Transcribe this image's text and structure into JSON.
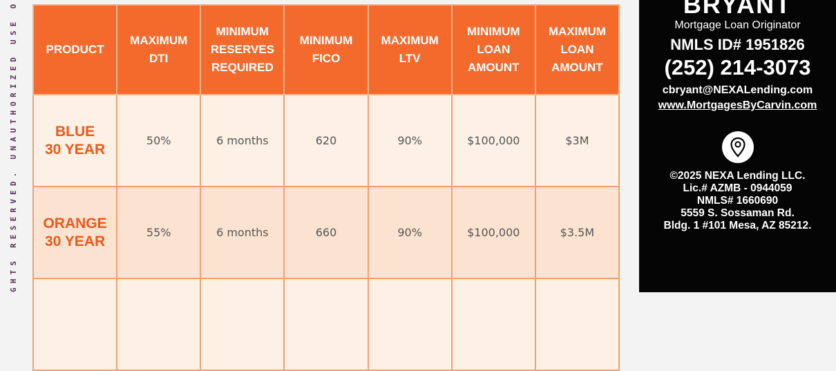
{
  "side_text": "GHTS RESERVED. UNAUTHORIZED USE OR R",
  "table": {
    "headers": [
      "PRODUCT",
      "MAXIMUM\nDTI",
      "MINIMUM\nRESERVES\nREQUIRED",
      "MINIMUM\nFICO",
      "MAXIMUM\nLTV",
      "MINIMUM\nLOAN\nAMOUNT",
      "MAXIMUM\nLOAN\nAMOUNT"
    ],
    "rows": [
      [
        "BLUE\n30 YEAR",
        "50%",
        "6 months",
        "620",
        "90%",
        "$100,000",
        "$3M"
      ],
      [
        "ORANGE\n30 YEAR",
        "55%",
        "6 months",
        "660",
        "90%",
        "$100,000",
        "$3.5M"
      ]
    ]
  },
  "contact": {
    "name": "BRYANT",
    "role": "Mortgage Loan Originator",
    "nmls": "NMLS ID# 1951826",
    "phone": "(252) 214-3073",
    "email": "cbryant@NEXALending.com",
    "website": "www.MortgagesByCarvin.com",
    "icon": "location-pin-icon",
    "address": [
      "©2025 NEXA Lending LLC.",
      "Lic.# AZMB - 0944059",
      "NMLS# 1660690",
      "5559 S. Sossaman Rd.",
      "Bldg. 1 #101 Mesa, AZ 85212."
    ]
  }
}
